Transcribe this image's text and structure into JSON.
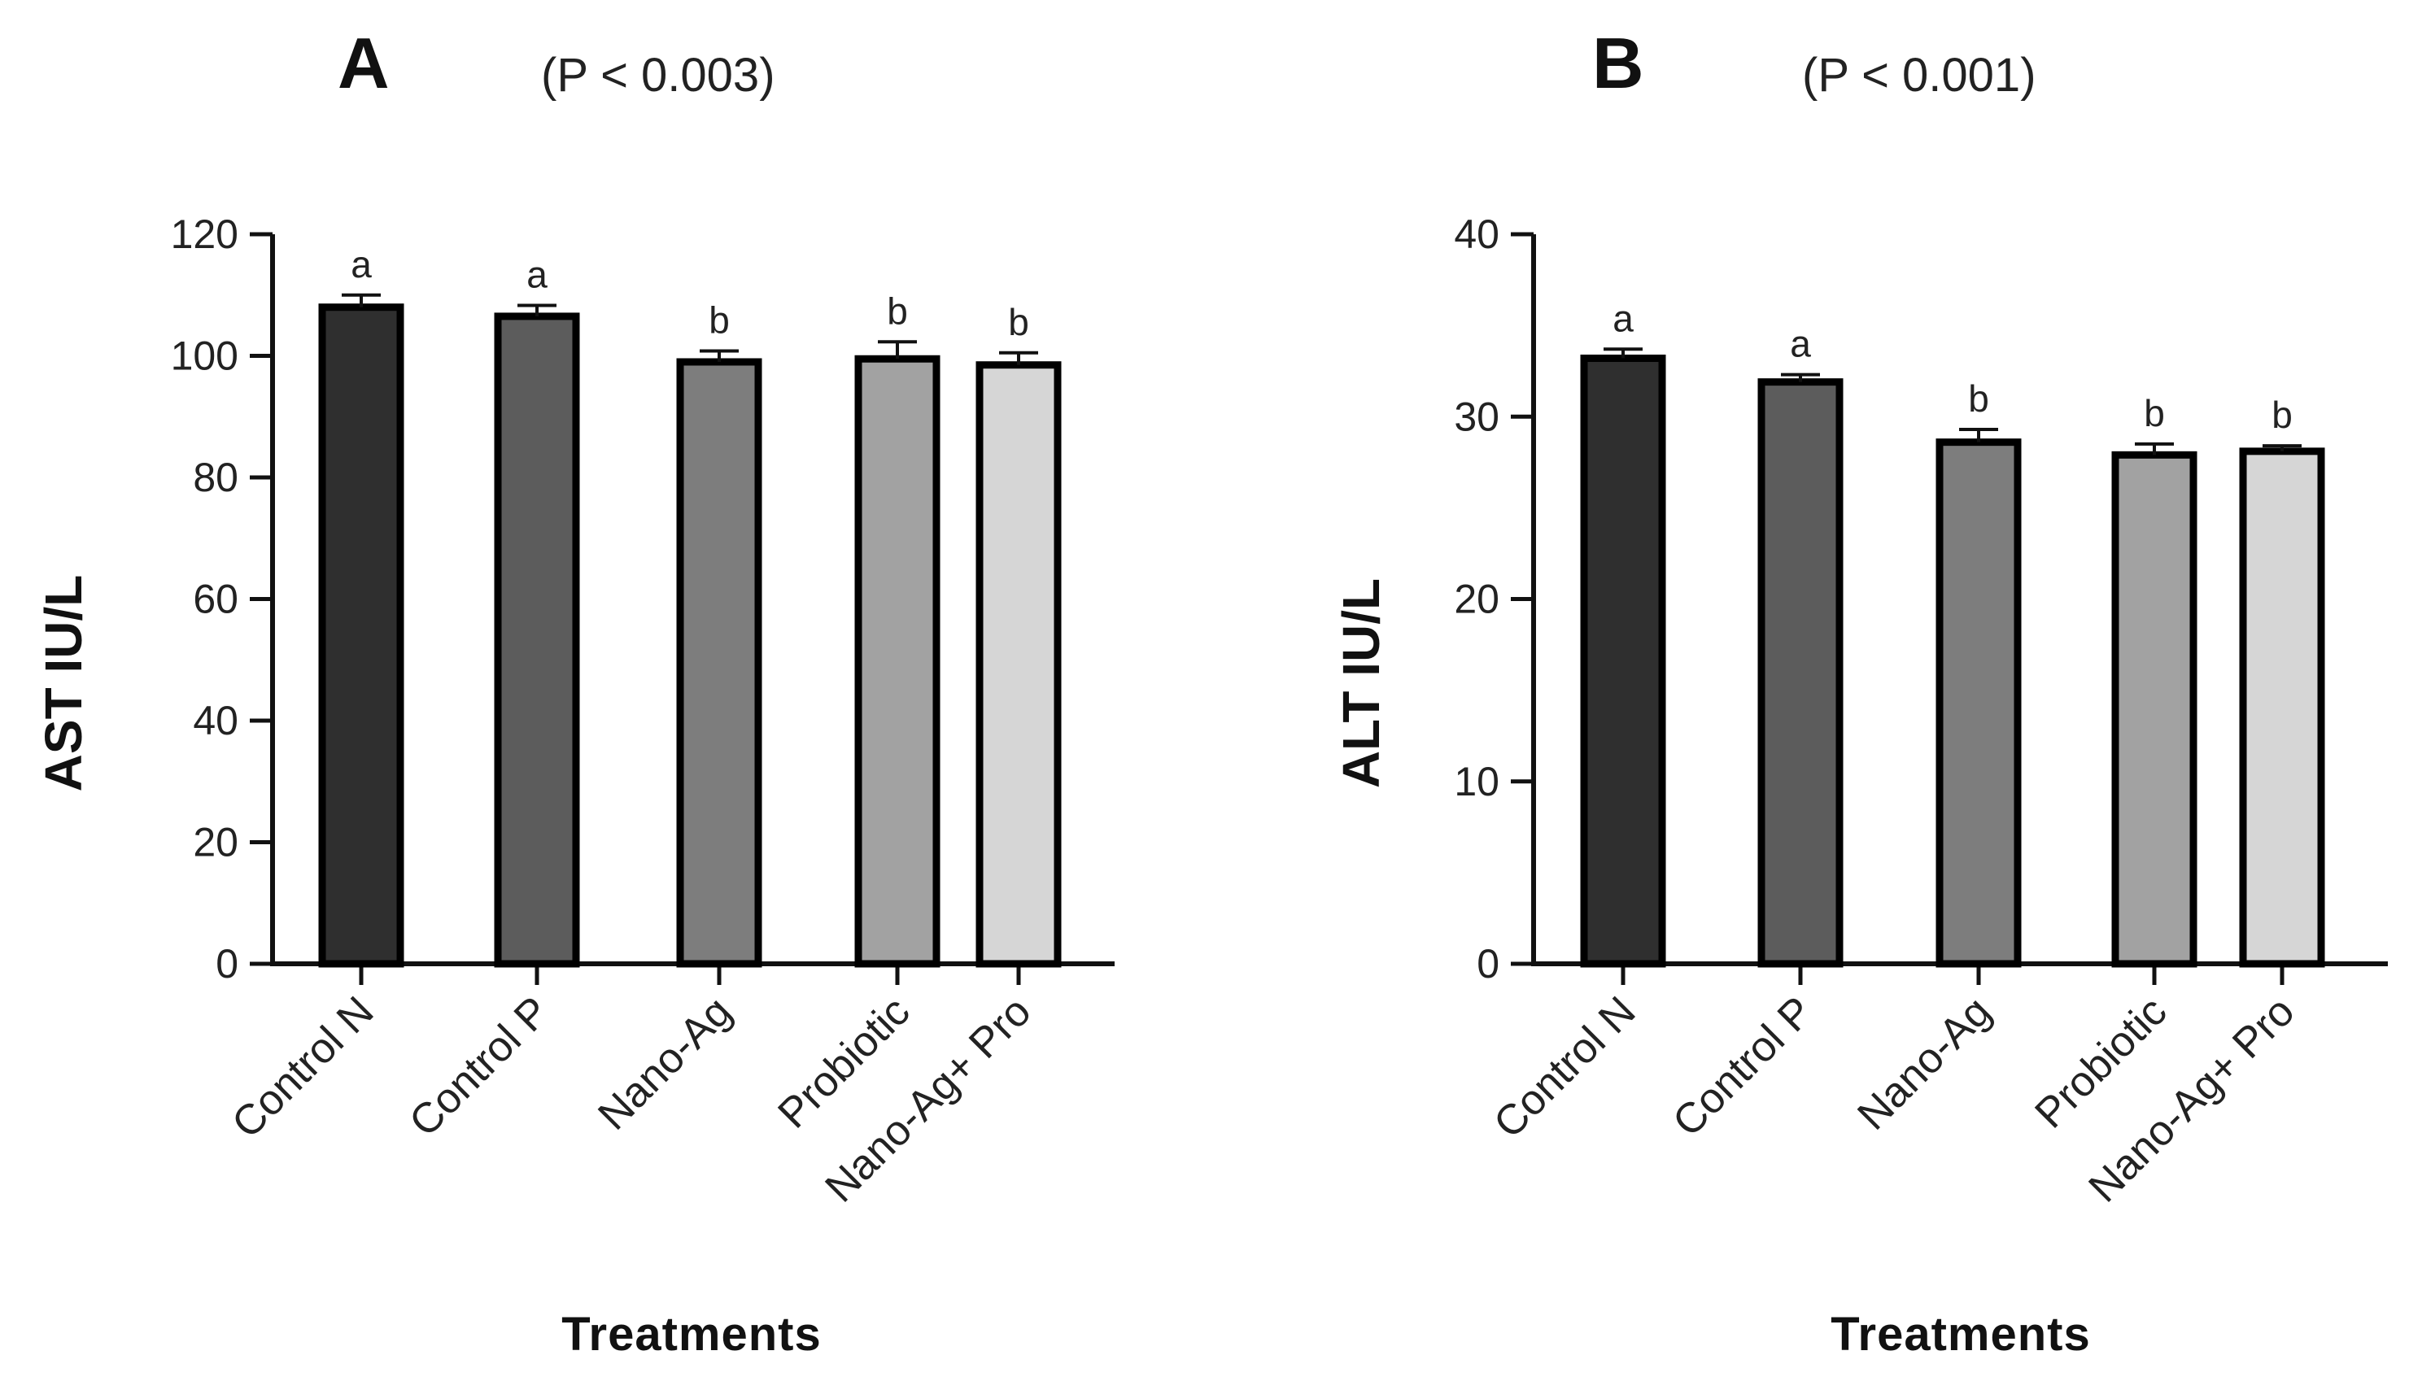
{
  "chart_data": [
    {
      "type": "bar",
      "panel": "A",
      "p_value": "(P < 0.003)",
      "title": "A",
      "xlabel": "Treatments",
      "ylabel": "AST IU/L",
      "ylim": [
        0,
        120
      ],
      "yticks": [
        0,
        20,
        40,
        60,
        80,
        100,
        120
      ],
      "categories": [
        "Control N",
        "Control P",
        "Nano-Ag",
        "Probiotic",
        "Nano-Ag+ Pro"
      ],
      "values": [
        108,
        106.5,
        99,
        99.5,
        98.5
      ],
      "errors": [
        2,
        1.8,
        1.8,
        2.8,
        2
      ],
      "significance": [
        "a",
        "a",
        "b",
        "b",
        "b"
      ],
      "bar_colors": [
        "#2f2f2f",
        "#5c5c5c",
        "#7d7d7d",
        "#a2a2a2",
        "#d6d6d6"
      ],
      "grid": false
    },
    {
      "type": "bar",
      "panel": "B",
      "p_value": "(P < 0.001)",
      "title": "B",
      "xlabel": "Treatments",
      "ylabel": "ALT IU/L",
      "ylim": [
        0,
        40
      ],
      "yticks": [
        0,
        10,
        20,
        30,
        40
      ],
      "categories": [
        "Control N",
        "Control P",
        "Nano-Ag",
        "Probiotic",
        "Nano-Ag+ Pro"
      ],
      "values": [
        33.2,
        31.9,
        28.6,
        27.9,
        28.1
      ],
      "errors": [
        0.5,
        0.4,
        0.7,
        0.6,
        0.3
      ],
      "significance": [
        "a",
        "a",
        "b",
        "b",
        "b"
      ],
      "bar_colors": [
        "#2f2f2f",
        "#5c5c5c",
        "#7d7d7d",
        "#a2a2a2",
        "#d6d6d6"
      ],
      "grid": false
    }
  ]
}
